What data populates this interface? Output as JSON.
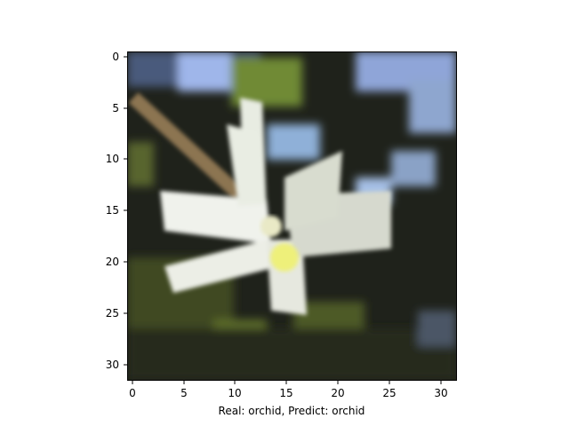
{
  "figure": {
    "caption": "Real: orchid, Predict: orchid",
    "real_label": "orchid",
    "predicted_label": "orchid"
  },
  "image": {
    "grid_size": 32,
    "subject": "white lily-like flower (CIFAR-100 sample)",
    "palette": {
      "background_dark": "#1f221b",
      "foliage_green": "#5b6b2e",
      "sky_blue": "#9fb6ea",
      "petal_white": "#eceee6",
      "stamen_yellow": "#eef07a",
      "stem_brown": "#8c7451"
    }
  },
  "axes": {
    "x_ticks": [
      "0",
      "5",
      "10",
      "15",
      "20",
      "25",
      "30"
    ],
    "y_ticks": [
      "0",
      "5",
      "10",
      "15",
      "20",
      "25",
      "30"
    ]
  }
}
